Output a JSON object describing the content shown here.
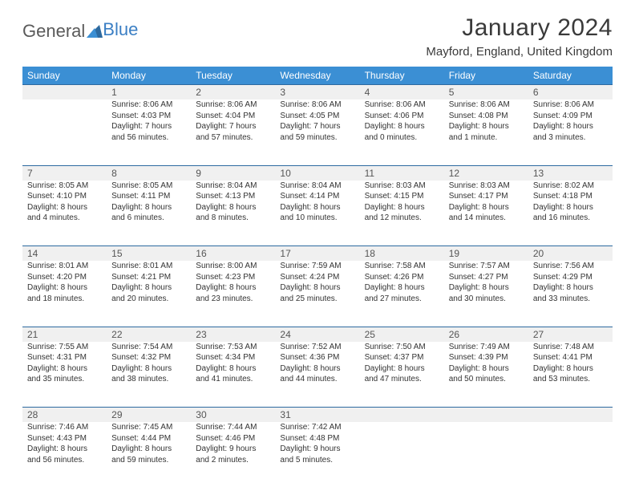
{
  "logo": {
    "part1": "General",
    "part2": "Blue"
  },
  "title": "January 2024",
  "location": "Mayford, England, United Kingdom",
  "colors": {
    "header_bg": "#3b8fd4",
    "header_text": "#ffffff",
    "daynum_bg": "#f0f0f0",
    "row_border": "#2d6aa0",
    "logo_gray": "#5a5a5a",
    "logo_blue": "#3b7fc4",
    "text": "#333333"
  },
  "day_names": [
    "Sunday",
    "Monday",
    "Tuesday",
    "Wednesday",
    "Thursday",
    "Friday",
    "Saturday"
  ],
  "weeks": [
    {
      "nums": [
        "",
        "1",
        "2",
        "3",
        "4",
        "5",
        "6"
      ],
      "cells": [
        {},
        {
          "sunrise": "Sunrise: 8:06 AM",
          "sunset": "Sunset: 4:03 PM",
          "day1": "Daylight: 7 hours",
          "day2": "and 56 minutes."
        },
        {
          "sunrise": "Sunrise: 8:06 AM",
          "sunset": "Sunset: 4:04 PM",
          "day1": "Daylight: 7 hours",
          "day2": "and 57 minutes."
        },
        {
          "sunrise": "Sunrise: 8:06 AM",
          "sunset": "Sunset: 4:05 PM",
          "day1": "Daylight: 7 hours",
          "day2": "and 59 minutes."
        },
        {
          "sunrise": "Sunrise: 8:06 AM",
          "sunset": "Sunset: 4:06 PM",
          "day1": "Daylight: 8 hours",
          "day2": "and 0 minutes."
        },
        {
          "sunrise": "Sunrise: 8:06 AM",
          "sunset": "Sunset: 4:08 PM",
          "day1": "Daylight: 8 hours",
          "day2": "and 1 minute."
        },
        {
          "sunrise": "Sunrise: 8:06 AM",
          "sunset": "Sunset: 4:09 PM",
          "day1": "Daylight: 8 hours",
          "day2": "and 3 minutes."
        }
      ]
    },
    {
      "nums": [
        "7",
        "8",
        "9",
        "10",
        "11",
        "12",
        "13"
      ],
      "cells": [
        {
          "sunrise": "Sunrise: 8:05 AM",
          "sunset": "Sunset: 4:10 PM",
          "day1": "Daylight: 8 hours",
          "day2": "and 4 minutes."
        },
        {
          "sunrise": "Sunrise: 8:05 AM",
          "sunset": "Sunset: 4:11 PM",
          "day1": "Daylight: 8 hours",
          "day2": "and 6 minutes."
        },
        {
          "sunrise": "Sunrise: 8:04 AM",
          "sunset": "Sunset: 4:13 PM",
          "day1": "Daylight: 8 hours",
          "day2": "and 8 minutes."
        },
        {
          "sunrise": "Sunrise: 8:04 AM",
          "sunset": "Sunset: 4:14 PM",
          "day1": "Daylight: 8 hours",
          "day2": "and 10 minutes."
        },
        {
          "sunrise": "Sunrise: 8:03 AM",
          "sunset": "Sunset: 4:15 PM",
          "day1": "Daylight: 8 hours",
          "day2": "and 12 minutes."
        },
        {
          "sunrise": "Sunrise: 8:03 AM",
          "sunset": "Sunset: 4:17 PM",
          "day1": "Daylight: 8 hours",
          "day2": "and 14 minutes."
        },
        {
          "sunrise": "Sunrise: 8:02 AM",
          "sunset": "Sunset: 4:18 PM",
          "day1": "Daylight: 8 hours",
          "day2": "and 16 minutes."
        }
      ]
    },
    {
      "nums": [
        "14",
        "15",
        "16",
        "17",
        "18",
        "19",
        "20"
      ],
      "cells": [
        {
          "sunrise": "Sunrise: 8:01 AM",
          "sunset": "Sunset: 4:20 PM",
          "day1": "Daylight: 8 hours",
          "day2": "and 18 minutes."
        },
        {
          "sunrise": "Sunrise: 8:01 AM",
          "sunset": "Sunset: 4:21 PM",
          "day1": "Daylight: 8 hours",
          "day2": "and 20 minutes."
        },
        {
          "sunrise": "Sunrise: 8:00 AM",
          "sunset": "Sunset: 4:23 PM",
          "day1": "Daylight: 8 hours",
          "day2": "and 23 minutes."
        },
        {
          "sunrise": "Sunrise: 7:59 AM",
          "sunset": "Sunset: 4:24 PM",
          "day1": "Daylight: 8 hours",
          "day2": "and 25 minutes."
        },
        {
          "sunrise": "Sunrise: 7:58 AM",
          "sunset": "Sunset: 4:26 PM",
          "day1": "Daylight: 8 hours",
          "day2": "and 27 minutes."
        },
        {
          "sunrise": "Sunrise: 7:57 AM",
          "sunset": "Sunset: 4:27 PM",
          "day1": "Daylight: 8 hours",
          "day2": "and 30 minutes."
        },
        {
          "sunrise": "Sunrise: 7:56 AM",
          "sunset": "Sunset: 4:29 PM",
          "day1": "Daylight: 8 hours",
          "day2": "and 33 minutes."
        }
      ]
    },
    {
      "nums": [
        "21",
        "22",
        "23",
        "24",
        "25",
        "26",
        "27"
      ],
      "cells": [
        {
          "sunrise": "Sunrise: 7:55 AM",
          "sunset": "Sunset: 4:31 PM",
          "day1": "Daylight: 8 hours",
          "day2": "and 35 minutes."
        },
        {
          "sunrise": "Sunrise: 7:54 AM",
          "sunset": "Sunset: 4:32 PM",
          "day1": "Daylight: 8 hours",
          "day2": "and 38 minutes."
        },
        {
          "sunrise": "Sunrise: 7:53 AM",
          "sunset": "Sunset: 4:34 PM",
          "day1": "Daylight: 8 hours",
          "day2": "and 41 minutes."
        },
        {
          "sunrise": "Sunrise: 7:52 AM",
          "sunset": "Sunset: 4:36 PM",
          "day1": "Daylight: 8 hours",
          "day2": "and 44 minutes."
        },
        {
          "sunrise": "Sunrise: 7:50 AM",
          "sunset": "Sunset: 4:37 PM",
          "day1": "Daylight: 8 hours",
          "day2": "and 47 minutes."
        },
        {
          "sunrise": "Sunrise: 7:49 AM",
          "sunset": "Sunset: 4:39 PM",
          "day1": "Daylight: 8 hours",
          "day2": "and 50 minutes."
        },
        {
          "sunrise": "Sunrise: 7:48 AM",
          "sunset": "Sunset: 4:41 PM",
          "day1": "Daylight: 8 hours",
          "day2": "and 53 minutes."
        }
      ]
    },
    {
      "nums": [
        "28",
        "29",
        "30",
        "31",
        "",
        "",
        ""
      ],
      "cells": [
        {
          "sunrise": "Sunrise: 7:46 AM",
          "sunset": "Sunset: 4:43 PM",
          "day1": "Daylight: 8 hours",
          "day2": "and 56 minutes."
        },
        {
          "sunrise": "Sunrise: 7:45 AM",
          "sunset": "Sunset: 4:44 PM",
          "day1": "Daylight: 8 hours",
          "day2": "and 59 minutes."
        },
        {
          "sunrise": "Sunrise: 7:44 AM",
          "sunset": "Sunset: 4:46 PM",
          "day1": "Daylight: 9 hours",
          "day2": "and 2 minutes."
        },
        {
          "sunrise": "Sunrise: 7:42 AM",
          "sunset": "Sunset: 4:48 PM",
          "day1": "Daylight: 9 hours",
          "day2": "and 5 minutes."
        },
        {},
        {},
        {}
      ]
    }
  ]
}
